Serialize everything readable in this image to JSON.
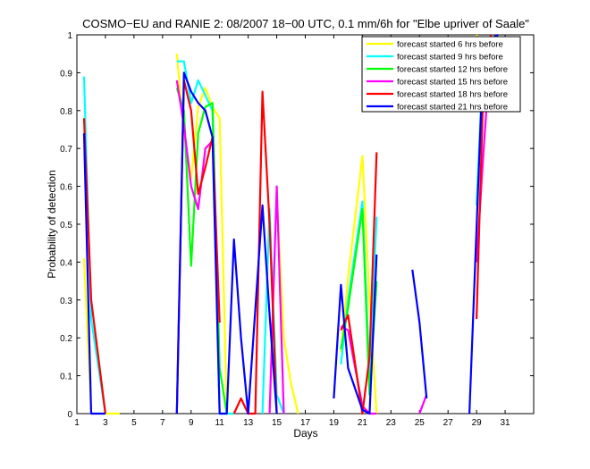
{
  "chart_data": {
    "type": "line",
    "title": "COSMO−EU and RANIE 2: 08/2007 18−00 UTC, 0.1 mm/6h for \"Elbe upriver of Saale\"",
    "xlabel": "Days",
    "ylabel": "Probability of detection",
    "xlim": [
      1,
      33
    ],
    "ylim": [
      0,
      1
    ],
    "xticks": [
      1,
      3,
      5,
      7,
      9,
      11,
      13,
      15,
      17,
      19,
      21,
      23,
      25,
      27,
      29,
      31
    ],
    "yticks": [
      0,
      0.1,
      0.2,
      0.3,
      0.4,
      0.5,
      0.6,
      0.7,
      0.8,
      0.9,
      1
    ],
    "ytick_labels": [
      "0",
      "0.1",
      "0.2",
      "0.3",
      "0.4",
      "0.5",
      "0.6",
      "0.7",
      "0.8",
      "0.9",
      "1"
    ],
    "legend_position": "top-right",
    "grid": false,
    "series": [
      {
        "name": "forecast started 6 hrs before",
        "color": "#ffff00",
        "segments": [
          [
            [
              1.5,
              0.41
            ],
            [
              2.0,
              0.0
            ],
            [
              3.0,
              0.0
            ],
            [
              4.0,
              0.0
            ]
          ],
          [
            [
              8.0,
              0.95
            ],
            [
              8.5,
              0.74
            ],
            [
              9.0,
              0.62
            ],
            [
              9.5,
              0.81
            ],
            [
              10.0,
              0.86
            ],
            [
              10.5,
              0.81
            ],
            [
              11.0,
              0.78
            ],
            [
              11.5,
              0.0
            ],
            [
              12.0,
              0.0
            ]
          ],
          [
            [
              15.0,
              0.58
            ],
            [
              15.5,
              0.2
            ],
            [
              16.0,
              0.08
            ],
            [
              16.5,
              0.0
            ]
          ],
          [
            [
              19.5,
              0.16
            ],
            [
              20.0,
              0.36
            ],
            [
              21.0,
              0.68
            ],
            [
              21.5,
              0.3
            ],
            [
              22.0,
              0.0
            ]
          ],
          [
            [
              29.0,
              1.0
            ],
            [
              29.5,
              0.93
            ],
            [
              30.0,
              0.95
            ],
            [
              30.5,
              0.97
            ]
          ]
        ]
      },
      {
        "name": "forecast started 9 hrs before",
        "color": "#00ffff",
        "segments": [
          [
            [
              1.5,
              0.89
            ],
            [
              2.0,
              0.25
            ],
            [
              3.0,
              0.0
            ]
          ],
          [
            [
              8.0,
              0.93
            ],
            [
              8.5,
              0.93
            ],
            [
              9.0,
              0.82
            ],
            [
              9.5,
              0.88
            ],
            [
              10.0,
              0.84
            ],
            [
              10.5,
              0.8
            ],
            [
              11.0,
              0.0
            ],
            [
              12.0,
              0.0
            ]
          ],
          [
            [
              14.0,
              0.0
            ],
            [
              14.5,
              0.54
            ],
            [
              15.0,
              0.05
            ],
            [
              15.5,
              0.0
            ]
          ],
          [
            [
              19.5,
              0.13
            ],
            [
              20.0,
              0.3
            ],
            [
              21.0,
              0.56
            ],
            [
              21.5,
              0.1
            ],
            [
              22.0,
              0.52
            ]
          ],
          [
            [
              29.0,
              0.55
            ],
            [
              29.5,
              0.97
            ],
            [
              30.0,
              0.97
            ],
            [
              30.5,
              1.0
            ]
          ]
        ]
      },
      {
        "name": "forecast started 12 hrs before",
        "color": "#00ff00",
        "segments": [
          [
            [
              8.0,
              0.86
            ],
            [
              8.5,
              0.8
            ],
            [
              9.0,
              0.39
            ],
            [
              9.5,
              0.74
            ],
            [
              10.0,
              0.81
            ],
            [
              10.5,
              0.82
            ],
            [
              11.0,
              0.12
            ],
            [
              11.5,
              0.0
            ]
          ],
          [
            [
              19.5,
              0.17
            ],
            [
              20.0,
              0.28
            ],
            [
              21.0,
              0.54
            ],
            [
              21.5,
              0.05
            ],
            [
              22.0,
              0.35
            ]
          ],
          [
            [
              29.0,
              0.9
            ],
            [
              29.5,
              0.93
            ],
            [
              30.0,
              0.97
            ]
          ]
        ]
      },
      {
        "name": "forecast started 15 hrs before",
        "color": "#ff00ff",
        "segments": [
          [
            [
              8.0,
              0.88
            ],
            [
              8.5,
              0.76
            ],
            [
              9.0,
              0.6
            ],
            [
              9.5,
              0.54
            ],
            [
              10.0,
              0.7
            ],
            [
              10.5,
              0.72
            ]
          ],
          [
            [
              14.5,
              0.0
            ],
            [
              15.0,
              0.6
            ],
            [
              15.5,
              0.0
            ]
          ],
          [
            [
              19.5,
              0.23
            ],
            [
              20.0,
              0.22
            ],
            [
              21.0,
              0.02
            ],
            [
              21.5,
              0.0
            ],
            [
              22.0,
              0.0
            ]
          ],
          [
            [
              25.0,
              0.0
            ],
            [
              25.5,
              0.05
            ]
          ],
          [
            [
              29.0,
              0.4
            ],
            [
              29.5,
              0.7
            ],
            [
              30.0,
              0.97
            ]
          ]
        ]
      },
      {
        "name": "forecast started 18 hrs before",
        "color": "#ff0000",
        "segments": [
          [
            [
              1.5,
              0.78
            ],
            [
              2.0,
              0.3
            ],
            [
              3.0,
              0.0
            ]
          ],
          [
            [
              8.0,
              0.0
            ],
            [
              8.5,
              0.88
            ],
            [
              9.0,
              0.8
            ],
            [
              9.5,
              0.58
            ],
            [
              10.0,
              0.65
            ],
            [
              10.5,
              0.73
            ],
            [
              11.0,
              0.24
            ]
          ],
          [
            [
              12.0,
              0.0
            ],
            [
              12.5,
              0.04
            ],
            [
              13.0,
              0.0
            ],
            [
              13.5,
              0.0
            ],
            [
              14.0,
              0.85
            ],
            [
              14.5,
              0.5
            ],
            [
              15.0,
              0.0
            ]
          ],
          [
            [
              19.5,
              0.22
            ],
            [
              20.0,
              0.26
            ],
            [
              21.0,
              0.0
            ],
            [
              21.5,
              0.15
            ],
            [
              22.0,
              0.69
            ]
          ],
          [
            [
              29.0,
              0.25
            ],
            [
              29.5,
              0.9
            ],
            [
              30.0,
              1.0
            ]
          ]
        ]
      },
      {
        "name": "forecast started 21 hrs before",
        "color": "#0000ff",
        "segments": [
          [
            [
              1.5,
              0.74
            ],
            [
              2.0,
              0.0
            ],
            [
              3.0,
              0.0
            ]
          ],
          [
            [
              8.0,
              0.0
            ],
            [
              8.5,
              0.9
            ],
            [
              9.0,
              0.85
            ],
            [
              9.5,
              0.82
            ],
            [
              10.0,
              0.8
            ],
            [
              10.5,
              0.73
            ],
            [
              11.0,
              0.0
            ],
            [
              11.5,
              0.0
            ],
            [
              12.0,
              0.46
            ],
            [
              12.5,
              0.2
            ],
            [
              13.0,
              0.0
            ],
            [
              14.0,
              0.55
            ],
            [
              14.5,
              0.26
            ],
            [
              15.0,
              0.0
            ]
          ],
          [
            [
              19.0,
              0.04
            ],
            [
              19.5,
              0.34
            ],
            [
              20.0,
              0.12
            ],
            [
              21.0,
              0.01
            ],
            [
              21.5,
              0.0
            ],
            [
              22.0,
              0.42
            ]
          ],
          [
            [
              24.5,
              0.38
            ],
            [
              25.0,
              0.24
            ],
            [
              25.5,
              0.04
            ]
          ],
          [
            [
              28.5,
              0.0
            ],
            [
              29.5,
              0.98
            ],
            [
              30.0,
              0.99
            ],
            [
              30.5,
              1.0
            ]
          ]
        ]
      }
    ]
  }
}
